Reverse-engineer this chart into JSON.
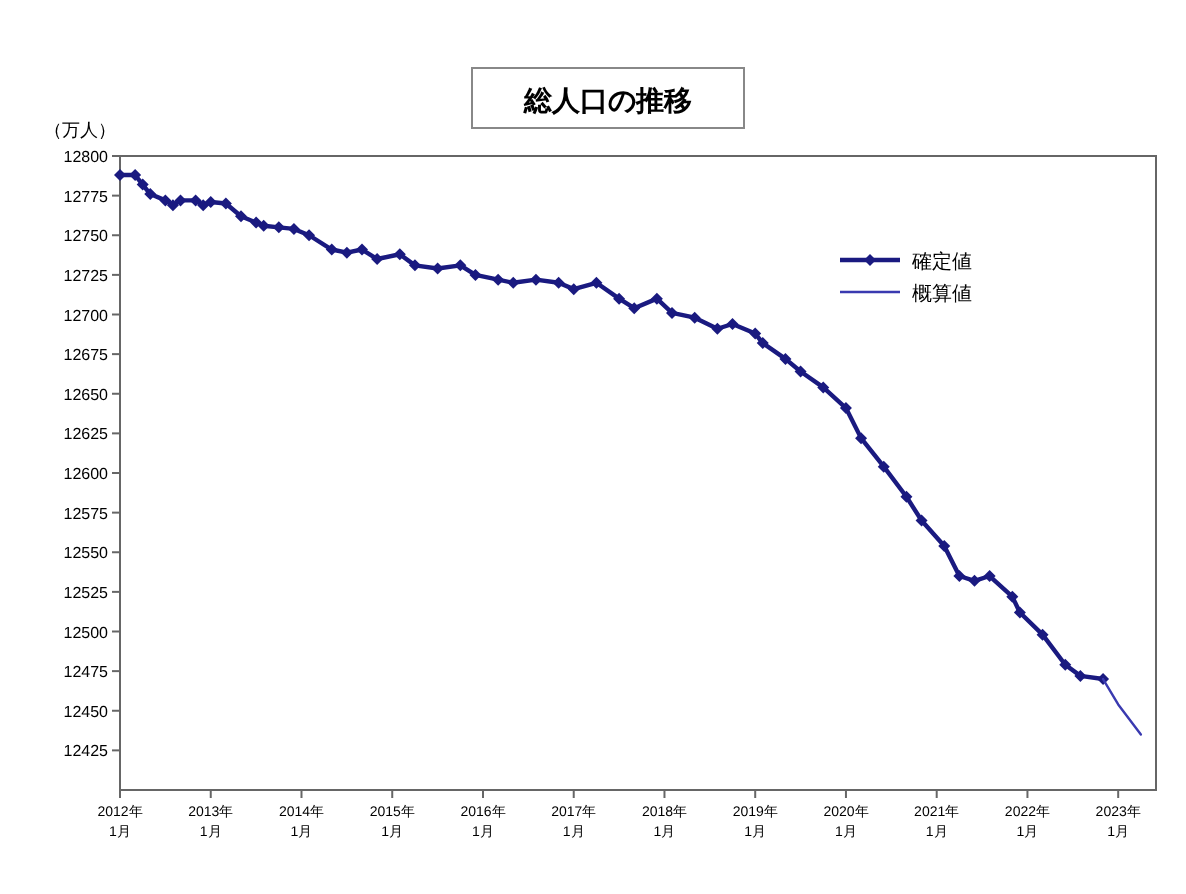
{
  "chart_data": {
    "type": "line",
    "title": "総人口の推移",
    "ylabel": "（万人）",
    "xlim": [
      "2012-01",
      "2023-06"
    ],
    "xticks": [
      {
        "value": "2012-01",
        "label": "2012年\n1月"
      },
      {
        "value": "2013-01",
        "label": "2013年\n1月"
      },
      {
        "value": "2014-01",
        "label": "2014年\n1月"
      },
      {
        "value": "2015-01",
        "label": "2015年\n1月"
      },
      {
        "value": "2016-01",
        "label": "2016年\n1月"
      },
      {
        "value": "2017-01",
        "label": "2017年\n1月"
      },
      {
        "value": "2018-01",
        "label": "2018年\n1月"
      },
      {
        "value": "2019-01",
        "label": "2019年\n1月"
      },
      {
        "value": "2020-01",
        "label": "2020年\n1月"
      },
      {
        "value": "2021-01",
        "label": "2021年\n1月"
      },
      {
        "value": "2022-01",
        "label": "2022年\n1月"
      },
      {
        "value": "2023-01",
        "label": "2023年\n1月"
      }
    ],
    "ylim": [
      12400,
      12800
    ],
    "yticks": [
      12800,
      12775,
      12750,
      12725,
      12700,
      12675,
      12650,
      12625,
      12600,
      12575,
      12550,
      12525,
      12500,
      12475,
      12450,
      12425
    ],
    "legend": "top right",
    "series": [
      {
        "name": "確定値",
        "color": "#1a1a80",
        "marker": "diamond",
        "x": [
          "2012-01",
          "2012-03",
          "2012-04",
          "2012-05",
          "2012-07",
          "2012-08",
          "2012-09",
          "2012-11",
          "2012-12",
          "2013-01",
          "2013-03",
          "2013-05",
          "2013-07",
          "2013-08",
          "2013-10",
          "2013-12",
          "2014-02",
          "2014-05",
          "2014-07",
          "2014-09",
          "2014-11",
          "2015-02",
          "2015-04",
          "2015-07",
          "2015-10",
          "2015-12",
          "2016-03",
          "2016-05",
          "2016-08",
          "2016-11",
          "2017-01",
          "2017-04",
          "2017-07",
          "2017-09",
          "2017-12",
          "2018-02",
          "2018-05",
          "2018-08",
          "2018-10",
          "2019-01",
          "2019-02",
          "2019-05",
          "2019-07",
          "2019-10",
          "2020-01",
          "2020-03",
          "2020-06",
          "2020-09",
          "2020-11",
          "2021-02",
          "2021-04",
          "2021-06",
          "2021-08",
          "2021-11",
          "2021-12",
          "2022-03",
          "2022-06",
          "2022-08",
          "2022-11"
        ],
        "values": [
          12788,
          12788,
          12782,
          12776,
          12772,
          12769,
          12772,
          12772,
          12769,
          12771,
          12770,
          12762,
          12758,
          12756,
          12755,
          12754,
          12750,
          12741,
          12739,
          12741,
          12735,
          12738,
          12731,
          12729,
          12731,
          12725,
          12722,
          12720,
          12722,
          12720,
          12716,
          12720,
          12710,
          12704,
          12710,
          12701,
          12698,
          12691,
          12694,
          12688,
          12682,
          12672,
          12664,
          12654,
          12641,
          12622,
          12604,
          12585,
          12570,
          12554,
          12535,
          12532,
          12535,
          12522,
          12512,
          12498,
          12479,
          12472,
          12470
        ]
      },
      {
        "name": "概算値",
        "color": "#3a3ab0",
        "marker": "none",
        "x": [
          "2022-11",
          "2023-01",
          "2023-04"
        ],
        "values": [
          12470,
          12454,
          12435
        ]
      }
    ]
  }
}
